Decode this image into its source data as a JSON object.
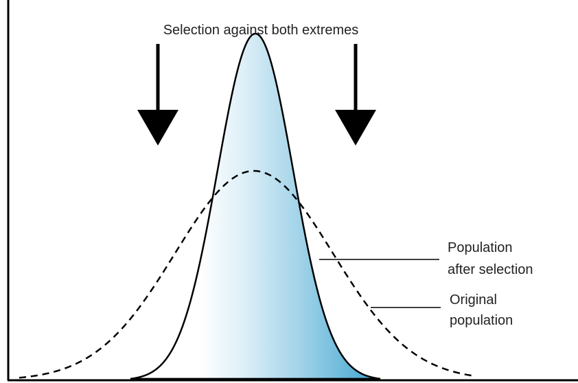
{
  "title": "Selection against both extremes",
  "labels": [
    {
      "lines": [
        "Population",
        "after selection"
      ]
    },
    {
      "lines": [
        "Original",
        "population"
      ]
    }
  ]
}
